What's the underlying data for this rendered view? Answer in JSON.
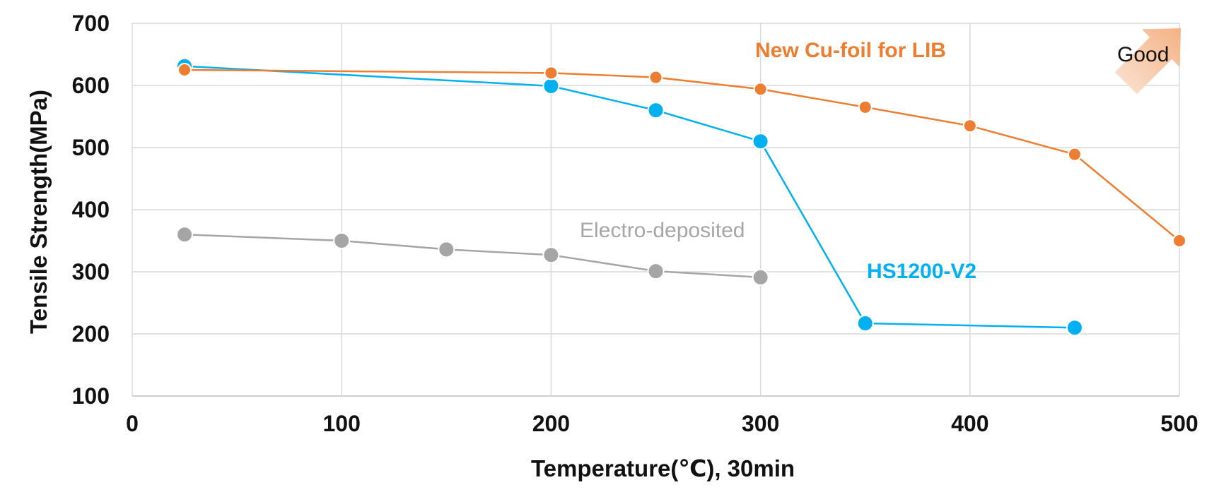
{
  "chart_data": {
    "type": "line",
    "xlabel": "Temperature(℃), 30min",
    "ylabel": "Tensile Strength(MPa)",
    "xlim": [
      0,
      500
    ],
    "ylim": [
      100,
      700
    ],
    "xticks": [
      0,
      100,
      200,
      300,
      400,
      500
    ],
    "yticks": [
      100,
      200,
      300,
      400,
      500,
      600,
      700
    ],
    "grid": true,
    "series": [
      {
        "name": "New Cu-foil for LIB",
        "color": "#ED7D31",
        "label_bold": true,
        "points": [
          {
            "x": 25,
            "y": 625
          },
          {
            "x": 200,
            "y": 620
          },
          {
            "x": 250,
            "y": 613
          },
          {
            "x": 300,
            "y": 594
          },
          {
            "x": 350,
            "y": 565
          },
          {
            "x": 400,
            "y": 535
          },
          {
            "x": 450,
            "y": 489
          },
          {
            "x": 500,
            "y": 350
          }
        ]
      },
      {
        "name": "HS1200-V2",
        "color": "#00B0F0",
        "label_bold": true,
        "points": [
          {
            "x": 25,
            "y": 631
          },
          {
            "x": 200,
            "y": 599
          },
          {
            "x": 250,
            "y": 560
          },
          {
            "x": 300,
            "y": 510
          },
          {
            "x": 350,
            "y": 217
          },
          {
            "x": 450,
            "y": 210
          }
        ]
      },
      {
        "name": "Electro-deposited",
        "color": "#A5A5A5",
        "label_bold": false,
        "points": [
          {
            "x": 25,
            "y": 360
          },
          {
            "x": 100,
            "y": 350
          },
          {
            "x": 150,
            "y": 336
          },
          {
            "x": 200,
            "y": 327
          },
          {
            "x": 250,
            "y": 301
          },
          {
            "x": 300,
            "y": 291
          }
        ]
      }
    ],
    "annotation": {
      "text": "Good",
      "arrow_color": "#F4B183"
    }
  }
}
